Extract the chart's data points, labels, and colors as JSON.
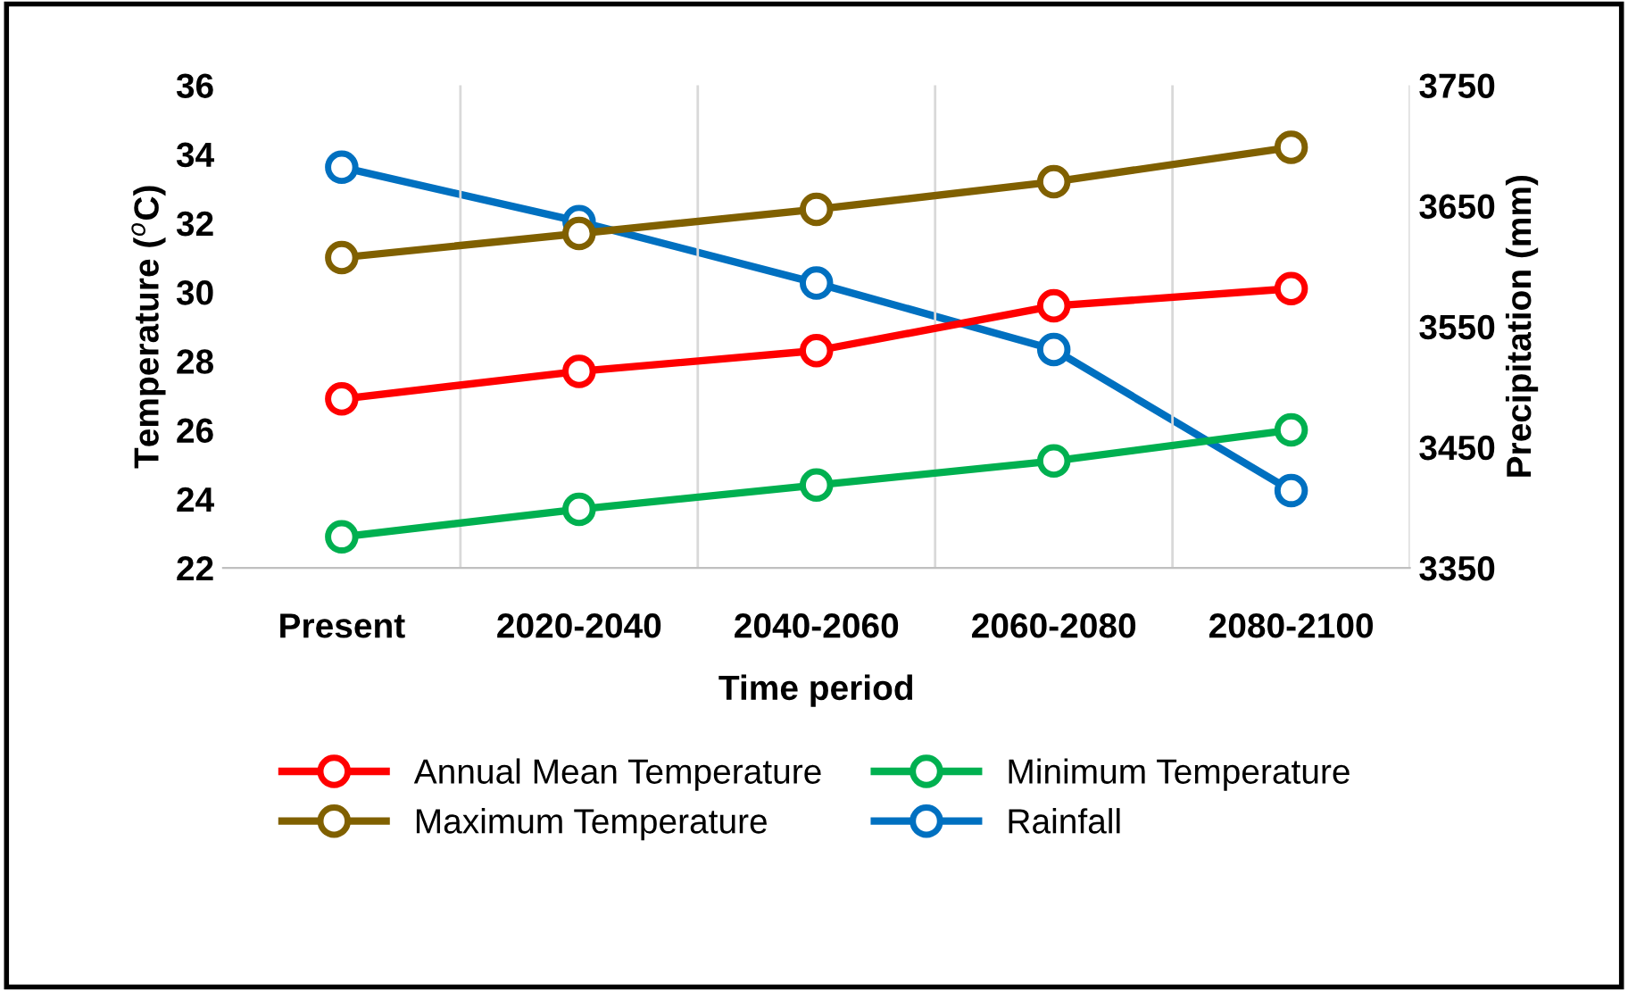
{
  "chart_data": {
    "type": "line",
    "xlabel": "Time period",
    "ylabel": "Temperature ($^{o}$C)",
    "y2label": "Precipitation (mm)",
    "categories": [
      "Present",
      "2020-2040",
      "2040-2060",
      "2060-2080",
      "2080-2100"
    ],
    "series": [
      {
        "name": "Annual Mean Temperature",
        "color": "#ff0000",
        "values": [
          26.9,
          27.7,
          28.3,
          29.6,
          30.1
        ]
      },
      {
        "name": "Maximum Temperature",
        "color": "#806000",
        "values": [
          31.0,
          31.7,
          32.4,
          33.2,
          34.2
        ]
      },
      {
        "name": "Minimum Temperature",
        "color": "#00b050",
        "values": [
          22.9,
          23.7,
          24.4,
          25.1,
          26.0
        ]
      },
      {
        "name": "Rainfall",
        "color": "#0070c0",
        "axis": "y2",
        "values": [
          3682,
          3637,
          3586,
          3531,
          3414
        ]
      }
    ],
    "ylim": [
      22,
      36
    ],
    "yticks": [
      22,
      24,
      26,
      28,
      30,
      32,
      34,
      36
    ],
    "y2lim": [
      3350,
      3750
    ],
    "y2ticks": [
      3350,
      3450,
      3550,
      3650,
      3750
    ],
    "grid": "x",
    "legend": "bottom",
    "marker": "circle",
    "line_style": "solid"
  }
}
